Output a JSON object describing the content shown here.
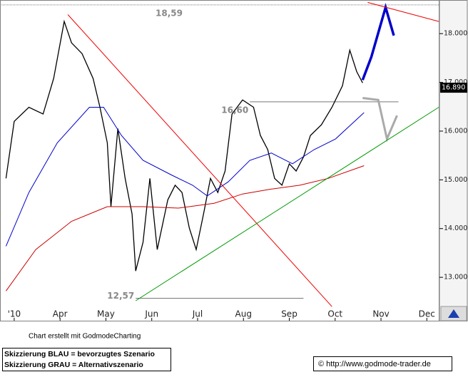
{
  "chart_data": {
    "type": "line",
    "xlim": [
      2.69,
      12.26
    ],
    "ylim": [
      12.11,
      18.69
    ],
    "xticks": [
      {
        "value": 3,
        "label": "'10"
      },
      {
        "value": 4,
        "label": "Apr"
      },
      {
        "value": 5,
        "label": "May"
      },
      {
        "value": 6,
        "label": "Jun"
      },
      {
        "value": 7,
        "label": "Jul"
      },
      {
        "value": 8,
        "label": "Aug"
      },
      {
        "value": 9,
        "label": "Sep"
      },
      {
        "value": 10,
        "label": "Oct"
      },
      {
        "value": 11,
        "label": "Nov"
      },
      {
        "value": 12,
        "label": "Dec"
      }
    ],
    "yticks": [
      {
        "value": 13,
        "label": "13.000"
      },
      {
        "value": 14,
        "label": "14.000"
      },
      {
        "value": 15,
        "label": "15.000"
      },
      {
        "value": 16,
        "label": "16.000"
      },
      {
        "value": 17,
        "label": "17.000"
      },
      {
        "value": 18,
        "label": "18.000"
      }
    ],
    "last_price": {
      "value": 16.89,
      "label": "16.890"
    },
    "series": [
      {
        "color": "#000000",
        "width": 1.3,
        "x": [
          2.82,
          3.0,
          3.32,
          3.63,
          3.86,
          4.09,
          4.25,
          4.48,
          4.72,
          4.87,
          5.03,
          5.11,
          5.26,
          5.42,
          5.57,
          5.65,
          5.81,
          5.96,
          6.12,
          6.35,
          6.51,
          6.66,
          6.82,
          6.97,
          7.13,
          7.28,
          7.44,
          7.6,
          7.75,
          7.98,
          8.22,
          8.37,
          8.53,
          8.68,
          8.84,
          9.0,
          9.15,
          9.31,
          9.46,
          9.7,
          9.93,
          10.16,
          10.32,
          10.47,
          10.6
        ],
        "values": [
          15.03,
          16.2,
          16.49,
          16.35,
          17.08,
          18.25,
          17.81,
          17.59,
          17.08,
          16.49,
          15.76,
          14.45,
          16.05,
          15.03,
          14.3,
          13.13,
          13.72,
          15.03,
          13.57,
          14.59,
          14.89,
          14.74,
          14.01,
          13.57,
          14.3,
          15.03,
          14.74,
          15.18,
          16.35,
          16.64,
          16.49,
          15.91,
          15.62,
          15.03,
          14.89,
          15.33,
          15.18,
          15.47,
          15.91,
          16.13,
          16.49,
          16.93,
          17.66,
          17.22,
          16.99
        ]
      },
      {
        "color": "#0000cc",
        "width": 1,
        "x": [
          2.82,
          3.32,
          3.94,
          4.64,
          4.95,
          5.34,
          5.81,
          6.43,
          6.89,
          7.21,
          7.67,
          8.14,
          8.61,
          9.07,
          9.54,
          10.01,
          10.63
        ],
        "values": [
          13.64,
          14.74,
          15.76,
          16.49,
          16.49,
          15.91,
          15.4,
          15.1,
          14.89,
          14.67,
          14.96,
          15.4,
          15.55,
          15.33,
          15.62,
          15.84,
          16.38
        ]
      },
      {
        "color": "#cc0000",
        "width": 1,
        "x": [
          2.82,
          3.47,
          4.25,
          5.03,
          5.81,
          6.58,
          7.36,
          7.98,
          8.61,
          9.23,
          9.85,
          10.63
        ],
        "values": [
          12.72,
          13.57,
          14.15,
          14.45,
          14.45,
          14.42,
          14.52,
          14.71,
          14.81,
          14.89,
          15.03,
          15.29
        ]
      },
      {
        "color": "#0000cc",
        "width": 3.5,
        "x": [
          10.6,
          10.79,
          11.1,
          11.28
        ],
        "values": [
          17.05,
          17.52,
          18.54,
          17.96
        ]
      },
      {
        "color": "#aaaaaa",
        "width": 3,
        "x": [
          10.6,
          10.94,
          11.13,
          11.35
        ],
        "values": [
          16.68,
          16.64,
          15.84,
          16.32
        ]
      },
      {
        "color": "#ee0000",
        "width": 1,
        "x": [
          4.17,
          9.93
        ],
        "values": [
          18.39,
          12.4
        ]
      },
      {
        "color": "#ee0000",
        "width": 1,
        "x": [
          10.71,
          12.26
        ],
        "values": [
          18.64,
          18.25
        ]
      },
      {
        "color": "#009900",
        "width": 1,
        "x": [
          5.65,
          12.26
        ],
        "values": [
          12.52,
          16.49
        ]
      }
    ],
    "hlines": [
      {
        "value": 18.59,
        "label": "18,59",
        "x": [
          2.69,
          12.26
        ]
      },
      {
        "value": 16.6,
        "label": "16,60",
        "x": [
          8.14,
          11.38
        ]
      },
      {
        "value": 12.57,
        "label": "12,57",
        "x": [
          5.65,
          9.31
        ]
      }
    ]
  },
  "footer": {
    "credit": "Chart erstellt mit GodmodeCharting",
    "legend": [
      "Skizzierung BLAU = bevorzugtes Szenario",
      "Skizzierung GRAU = Alternativszenario"
    ],
    "copyright": "© http://www.godmode-trader.de"
  }
}
